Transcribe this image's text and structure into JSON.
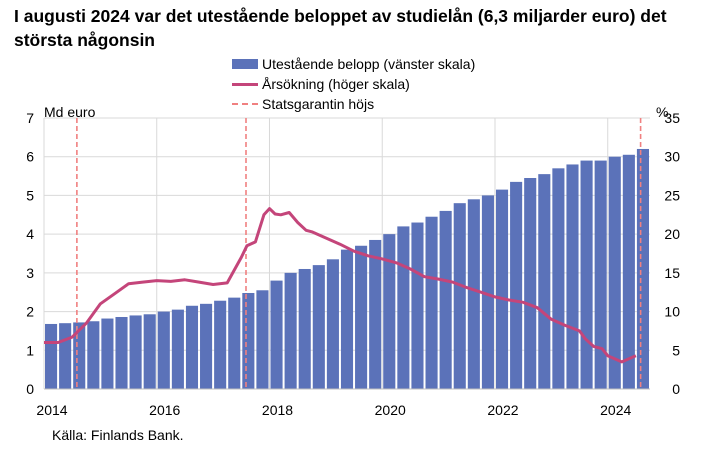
{
  "title": "I augusti 2024 var det utestående beloppet av studielån (6,3 miljarder euro) det största någonsin",
  "source": "Källa: Finlands Bank.",
  "colors": {
    "bars": "#5b72b9",
    "line": "#c4457a",
    "dashed": "#f08080",
    "grid": "#d9d9d9"
  },
  "chart_data": {
    "type": "bar",
    "left_axis": {
      "unit_label": "Md euro",
      "range": [
        0,
        7
      ],
      "ticks": [
        "0",
        "1",
        "2",
        "3",
        "4",
        "5",
        "6",
        "7"
      ]
    },
    "right_axis": {
      "unit_label": "%",
      "range": [
        0,
        35
      ],
      "ticks": [
        "0",
        "5",
        "10",
        "15",
        "20",
        "25",
        "30",
        "35"
      ]
    },
    "x_axis": {
      "range": [
        2014.0,
        2024.75
      ],
      "ticks": [
        2014,
        2016,
        2018,
        2020,
        2022,
        2024
      ],
      "tick_labels": [
        "2014",
        "2016",
        "2018",
        "2020",
        "2022",
        "2024"
      ]
    },
    "grid": true,
    "legend_position": "top-center",
    "series": [
      {
        "name": "Utestående belopp (vänster skala)",
        "kind": "bar",
        "axis": "left",
        "start": "2014-01",
        "values_by_quarter": [
          1.68,
          1.7,
          1.72,
          1.75,
          1.82,
          1.86,
          1.9,
          1.93,
          2.0,
          2.05,
          2.15,
          2.2,
          2.28,
          2.36,
          2.48,
          2.55,
          2.8,
          3.0,
          3.1,
          3.2,
          3.35,
          3.6,
          3.7,
          3.85,
          4.0,
          4.2,
          4.3,
          4.45,
          4.6,
          4.8,
          4.9,
          5.0,
          5.15,
          5.35,
          5.45,
          5.55,
          5.7,
          5.8,
          5.9,
          5.9,
          6.0,
          6.05,
          6.2,
          6.1,
          6.3
        ]
      },
      {
        "name": "Årsökning (höger skala)",
        "kind": "line",
        "axis": "right",
        "x": [
          2014.0,
          2014.25,
          2014.5,
          2014.75,
          2015.0,
          2015.25,
          2015.5,
          2015.75,
          2016.0,
          2016.25,
          2016.5,
          2016.75,
          2017.0,
          2017.25,
          2017.5,
          2017.6,
          2017.75,
          2017.9,
          2018.0,
          2018.1,
          2018.2,
          2018.35,
          2018.5,
          2018.65,
          2018.75,
          2019.0,
          2019.25,
          2019.5,
          2019.75,
          2020.0,
          2020.25,
          2020.5,
          2020.75,
          2021.0,
          2021.25,
          2021.5,
          2021.75,
          2022.0,
          2022.25,
          2022.5,
          2022.75,
          2023.0,
          2023.25,
          2023.5,
          2023.6,
          2023.75,
          2023.9,
          2024.0,
          2024.25,
          2024.5
        ],
        "y": [
          6,
          6,
          6.7,
          8.5,
          11,
          12.3,
          13.6,
          13.8,
          14,
          13.9,
          14.1,
          13.8,
          13.5,
          13.7,
          17,
          18.5,
          19,
          22.5,
          23.3,
          22.6,
          22.5,
          22.8,
          21.5,
          20.5,
          20.3,
          19.5,
          18.7,
          17.8,
          17.2,
          16.8,
          16.3,
          15.5,
          14.5,
          14.2,
          13.8,
          13.1,
          12.5,
          11.9,
          11.5,
          11.2,
          10.5,
          9,
          8.2,
          7.5,
          6.5,
          5.5,
          5.2,
          4.3,
          3.5,
          4.3
        ]
      },
      {
        "name": "Statsgarantin höjs",
        "kind": "vertical-dashed",
        "x": [
          "2014-08",
          "2017-08",
          "2024-08"
        ]
      }
    ]
  }
}
